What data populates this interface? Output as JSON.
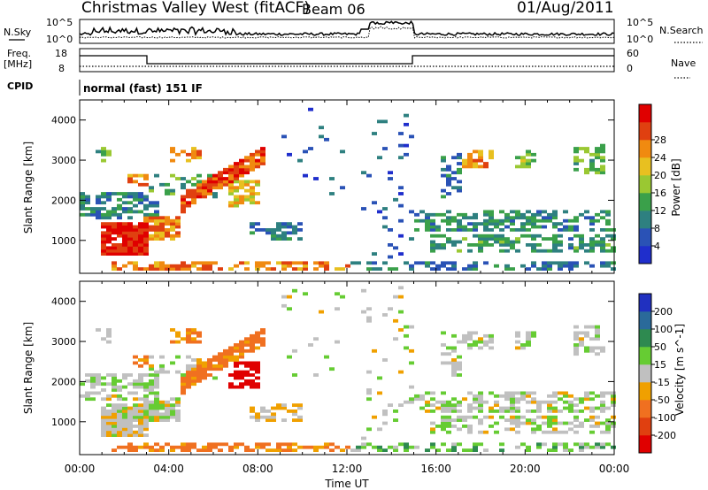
{
  "header": {
    "station": "Christmas Valley West (fitACF)",
    "beam": "Beam 06",
    "date": "01/Aug/2011"
  },
  "noise_panel": {
    "left_label": "N.Sky",
    "right_label": "N.Search",
    "left_ticks": [
      "10^5",
      "10^0"
    ],
    "right_ticks": [
      "10^5",
      "10^0"
    ]
  },
  "freq_panel": {
    "left_label_line1": "Freq.",
    "left_label_line2": "[MHz]",
    "right_label": "Nave",
    "left_ticks": [
      "18",
      "8"
    ],
    "right_ticks": [
      "60",
      "0"
    ]
  },
  "cpid_panel": {
    "label": "CPID",
    "text": "normal (fast) 151 IF"
  },
  "chart_data": [
    {
      "type": "heatmap",
      "parameter": "Power",
      "ylabel": "Slant Range [km]",
      "colorbar_label": "Power [dB]",
      "x_range_hours_ut": [
        0,
        24
      ],
      "ylim": [
        180,
        4500
      ],
      "y_ticks": [
        "1000",
        "2000",
        "3000",
        "4000"
      ],
      "colorbar_ticks": [
        "4",
        "8",
        "12",
        "16",
        "20",
        "24",
        "28"
      ],
      "colorbar_colors": [
        "#1f2ecc",
        "#2a52b6",
        "#2e8080",
        "#3aa04a",
        "#9ac832",
        "#e8c020",
        "#f08a10",
        "#e04010",
        "#e00000"
      ]
    },
    {
      "type": "heatmap",
      "parameter": "Velocity",
      "ylabel": "Slant Range [km]",
      "colorbar_label": "Velocity [m s^-1]",
      "x_range_hours_ut": [
        0,
        24
      ],
      "ylim": [
        180,
        4500
      ],
      "y_ticks": [
        "1000",
        "2000",
        "3000",
        "4000"
      ],
      "colorbar_ticks": [
        "200",
        "100",
        "50",
        "15",
        "-15",
        "-50",
        "-100",
        "-200"
      ],
      "colorbar_colors": [
        "#2030c0",
        "#2a6a9a",
        "#2e8a50",
        "#66cc33",
        "#c0c0c0",
        "#f0a000",
        "#f07020",
        "#e04010",
        "#e00000"
      ]
    }
  ],
  "x_axis": {
    "label": "Time UT",
    "ticks": [
      "00:00",
      "04:00",
      "08:00",
      "12:00",
      "16:00",
      "20:00",
      "00:00"
    ]
  }
}
